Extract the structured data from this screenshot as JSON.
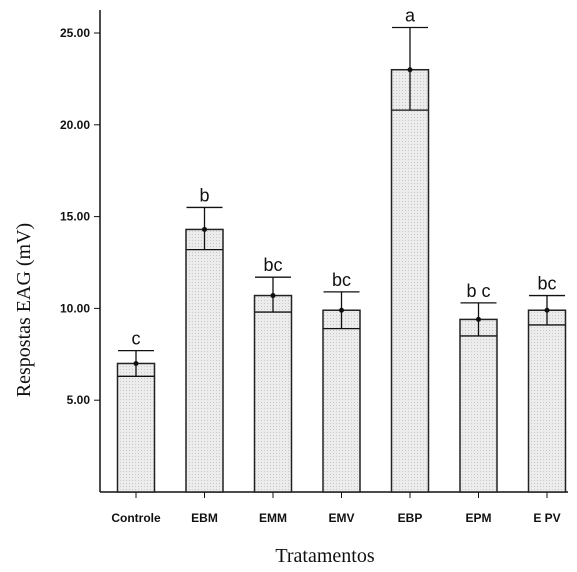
{
  "chart_data": {
    "type": "bar",
    "title": "",
    "xlabel": "Tratamentos",
    "ylabel": "Respostas EAG (mV)",
    "ylim": [
      0,
      26.0
    ],
    "yticks": [
      "5.00",
      "10.00",
      "15.00",
      "20.00",
      "25.00"
    ],
    "categories": [
      "Controle",
      "EBM",
      "EMM",
      "EMV",
      "EBP",
      "EPM",
      "E PV"
    ],
    "values": [
      7.0,
      14.3,
      10.7,
      9.9,
      23.0,
      9.4,
      9.9
    ],
    "error_upper": [
      7.7,
      15.5,
      11.7,
      10.9,
      25.3,
      10.3,
      10.7
    ],
    "error_lower": [
      6.3,
      13.2,
      9.8,
      8.9,
      20.8,
      8.5,
      9.1
    ],
    "significance": [
      "c",
      "b",
      "bc",
      "bc",
      "a",
      "b c",
      "bc"
    ],
    "bar_fill": "#e6e6e6",
    "bar_stroke": "#222222",
    "grid": false
  }
}
